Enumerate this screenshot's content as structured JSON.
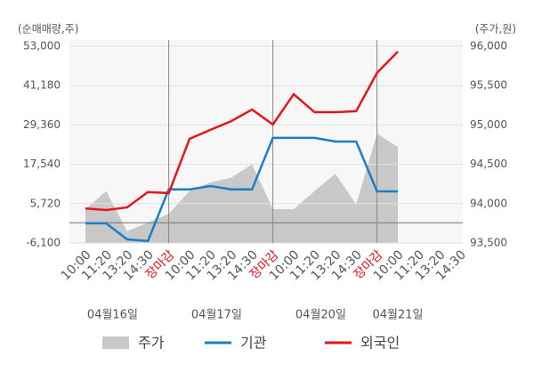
{
  "chart_data": {
    "type": "line",
    "y_label": "(순매매량,주)",
    "y2_label": "(주가,원)",
    "categories": [
      "10:00",
      "11:20",
      "13:20",
      "14:30",
      "장마감",
      "10:00",
      "11:20",
      "13:20",
      "14:30",
      "장마감",
      "10:00",
      "11:20",
      "13:20",
      "14:30",
      "장마감",
      "10:00",
      "11:20",
      "13:20",
      "14:30"
    ],
    "dates": [
      "04월16일",
      "04월17일",
      "04월20일",
      "04월21일"
    ],
    "ylim": [
      -6100,
      53000
    ],
    "yticks": [
      {
        "value": -6100,
        "label": "-6,100"
      },
      {
        "value": 5720,
        "label": "5,720"
      },
      {
        "value": 17540,
        "label": "17,540"
      },
      {
        "value": 29360,
        "label": "29,360"
      },
      {
        "value": 41180,
        "label": "41,180"
      },
      {
        "value": 53000,
        "label": "53,000"
      }
    ],
    "y2lim": [
      93500,
      96000
    ],
    "y2ticks": [
      {
        "value": 93500,
        "label": "93,500"
      },
      {
        "value": 94000,
        "label": "94,000"
      },
      {
        "value": 94500,
        "label": "94,500"
      },
      {
        "value": 95000,
        "label": "95,000"
      },
      {
        "value": 95500,
        "label": "95,500"
      },
      {
        "value": 96000,
        "label": "96,000"
      }
    ],
    "grid": true,
    "series": [
      {
        "name": "주가",
        "type": "area",
        "axis": "y2",
        "color": "#c8c8c8",
        "values": [
          93930,
          94160,
          93650,
          93760,
          93870,
          94160,
          94270,
          94330,
          94500,
          93930,
          93930,
          94160,
          94380,
          93990,
          94890,
          94720,
          null,
          null,
          null
        ]
      },
      {
        "name": "기관",
        "type": "line",
        "color": "#1a7dc8",
        "values": [
          -200,
          -200,
          -5000,
          -5500,
          10000,
          10000,
          11000,
          10000,
          10000,
          25500,
          25500,
          25500,
          24400,
          24400,
          9400,
          9400,
          null,
          null,
          null
        ]
      },
      {
        "name": "외국인",
        "type": "line",
        "color": "#e8141a",
        "values": [
          4300,
          3800,
          4600,
          9200,
          8900,
          25200,
          27900,
          30500,
          34000,
          29500,
          38600,
          33200,
          33200,
          33500,
          45000,
          51400,
          null,
          null,
          null
        ]
      }
    ]
  }
}
